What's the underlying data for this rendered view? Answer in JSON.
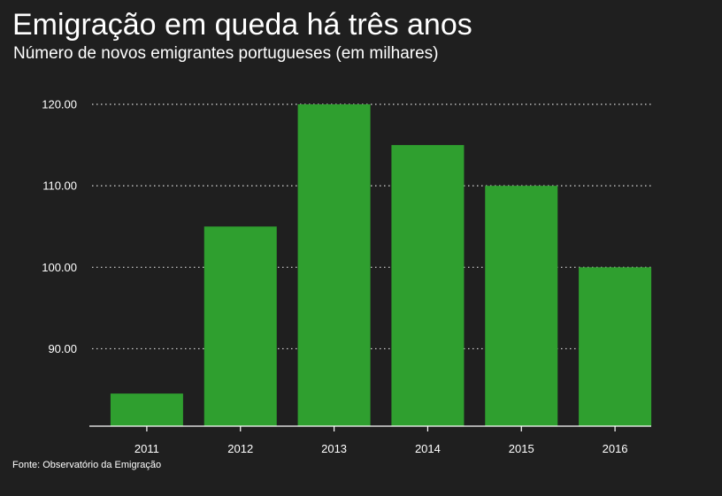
{
  "header": {
    "title": "Emigração em queda há três anos",
    "subtitle": "Número de novos emigrantes portugueses (em milhares)"
  },
  "footer": {
    "source": "Fonte: Observatório da Emigração"
  },
  "colors": {
    "background": "#1f1f1f",
    "bar": "#2f9f2f",
    "text": "#ffffff",
    "grid": "#d9d9d9"
  },
  "chart_data": {
    "type": "bar",
    "categories": [
      "2011",
      "2012",
      "2013",
      "2014",
      "2015",
      "2016"
    ],
    "values": [
      84.5,
      105,
      120,
      115,
      110,
      100
    ],
    "title": "Emigração em queda há três anos",
    "subtitle": "Número de novos emigrantes portugueses (em milhares)",
    "xlabel": "",
    "ylabel": "",
    "ylim": [
      80.5,
      120
    ],
    "yticks": [
      90,
      100,
      110,
      120
    ],
    "ytick_labels": [
      "90.00",
      "100.00",
      "110.00",
      "120.00"
    ],
    "grid": true,
    "legend": "none"
  }
}
